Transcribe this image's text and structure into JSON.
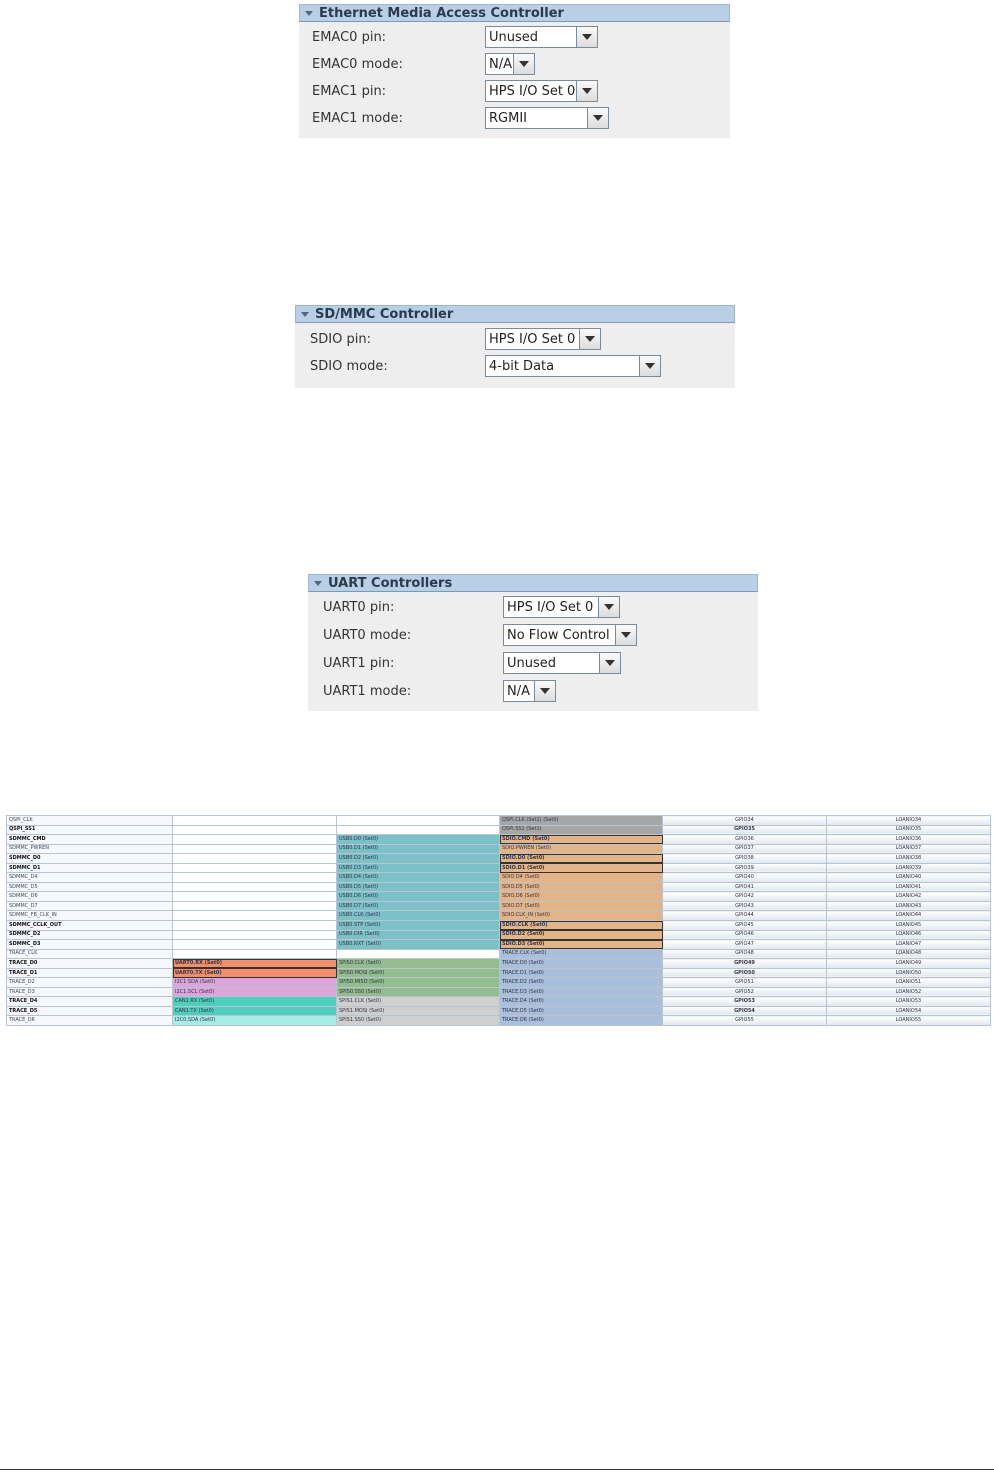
{
  "emac_panel": {
    "title": "Ethernet Media Access Controller",
    "rows": [
      {
        "label": "EMAC0 pin:",
        "value": "Unused"
      },
      {
        "label": "EMAC0 mode:",
        "value": "N/A"
      },
      {
        "label": "EMAC1 pin:",
        "value": "HPS I/O Set 0"
      },
      {
        "label": "EMAC1 mode:",
        "value": "RGMII"
      }
    ]
  },
  "sdmmc_panel": {
    "title": "SD/MMC Controller",
    "rows": [
      {
        "label": "SDIO pin:",
        "value": "HPS I/O Set 0"
      },
      {
        "label": "SDIO mode:",
        "value": "4-bit Data"
      }
    ]
  },
  "uart_panel": {
    "title": "UART Controllers",
    "rows": [
      {
        "label": "UART0 pin:",
        "value": "HPS I/O Set 0"
      },
      {
        "label": "UART0 mode:",
        "value": "No Flow Control"
      },
      {
        "label": "UART1 pin:",
        "value": "Unused"
      },
      {
        "label": "UART1 mode:",
        "value": "N/A"
      }
    ]
  },
  "pin_table": {
    "colors": {
      "usb": "#7cc0c8",
      "sdio": "#e4b489",
      "trace": "#a9bfdc",
      "qspi": "#a6a6a6",
      "uart": "#f08e6e",
      "spi_master": "#93bd8f",
      "i2c1": "#dca6dc",
      "can": "#4fcdbd",
      "spi_slave": "#cfcfcf",
      "i2c0": "#a8ece8"
    },
    "rows": [
      {
        "name": "QSPI_CLK",
        "bold": false,
        "c1": "",
        "c1c": "",
        "c2": "",
        "c2c": "",
        "c3": "QSPI.CLK (Set1) (Set0)",
        "c3c": "qspi",
        "c3b": false,
        "gpio": "GPIO34",
        "loan": "LOANIO34"
      },
      {
        "name": "QSPI_SS1",
        "bold": true,
        "c1": "",
        "c1c": "",
        "c2": "",
        "c2c": "",
        "c3": "QSPI.SS1 (Set1)",
        "c3c": "qspi",
        "c3b": false,
        "gpio": "GPIO35",
        "loan": "LOANIO35"
      },
      {
        "name": "SDMMC_CMD",
        "bold": true,
        "c1": "",
        "c1c": "",
        "c2": "USB0.D0 (Set0)",
        "c2c": "usb",
        "c3": "SDIO.CMD (Set0)",
        "c3c": "sdio",
        "c3b": true,
        "gpio": "GPIO36",
        "loan": "LOANIO36"
      },
      {
        "name": "SDMMC_PWREN",
        "bold": false,
        "c1": "",
        "c1c": "",
        "c2": "USB0.D1 (Set0)",
        "c2c": "usb",
        "c3": "SDIO.PWREN (Set0)",
        "c3c": "sdio",
        "c3b": false,
        "gpio": "GPIO37",
        "loan": "LOANIO37"
      },
      {
        "name": "SDMMC_D0",
        "bold": true,
        "c1": "",
        "c1c": "",
        "c2": "USB0.D2 (Set0)",
        "c2c": "usb",
        "c3": "SDIO.D0 (Set0)",
        "c3c": "sdio",
        "c3b": true,
        "gpio": "GPIO38",
        "loan": "LOANIO38"
      },
      {
        "name": "SDMMC_D1",
        "bold": true,
        "c1": "",
        "c1c": "",
        "c2": "USB0.D3 (Set0)",
        "c2c": "usb",
        "c3": "SDIO.D1 (Set0)",
        "c3c": "sdio",
        "c3b": true,
        "gpio": "GPIO39",
        "loan": "LOANIO39"
      },
      {
        "name": "SDMMC_D4",
        "bold": false,
        "c1": "",
        "c1c": "",
        "c2": "USB0.D4 (Set0)",
        "c2c": "usb",
        "c3": "SDIO.D4 (Set0)",
        "c3c": "sdio",
        "c3b": false,
        "gpio": "GPIO40",
        "loan": "LOANIO40"
      },
      {
        "name": "SDMMC_D5",
        "bold": false,
        "c1": "",
        "c1c": "",
        "c2": "USB0.D5 (Set0)",
        "c2c": "usb",
        "c3": "SDIO.D5 (Set0)",
        "c3c": "sdio",
        "c3b": false,
        "gpio": "GPIO41",
        "loan": "LOANIO41"
      },
      {
        "name": "SDMMC_D6",
        "bold": false,
        "c1": "",
        "c1c": "",
        "c2": "USB0.D6 (Set0)",
        "c2c": "usb",
        "c3": "SDIO.D6 (Set0)",
        "c3c": "sdio",
        "c3b": false,
        "gpio": "GPIO42",
        "loan": "LOANIO42"
      },
      {
        "name": "SDMMC_D7",
        "bold": false,
        "c1": "",
        "c1c": "",
        "c2": "USB0.D7 (Set0)",
        "c2c": "usb",
        "c3": "SDIO.D7 (Set0)",
        "c3c": "sdio",
        "c3b": false,
        "gpio": "GPIO43",
        "loan": "LOANIO43"
      },
      {
        "name": "SDMMC_FB_CLK_IN",
        "bold": false,
        "c1": "",
        "c1c": "",
        "c2": "USB0.CLK (Set0)",
        "c2c": "usb",
        "c3": "SDIO.CLK_IN (Set0)",
        "c3c": "sdio",
        "c3b": false,
        "gpio": "GPIO44",
        "loan": "LOANIO44"
      },
      {
        "name": "SDMMC_CCLK_OUT",
        "bold": true,
        "c1": "",
        "c1c": "",
        "c2": "USB0.STP (Set0)",
        "c2c": "usb",
        "c3": "SDIO.CLK (Set0)",
        "c3c": "sdio",
        "c3b": true,
        "gpio": "GPIO45",
        "loan": "LOANIO45"
      },
      {
        "name": "SDMMC_D2",
        "bold": true,
        "c1": "",
        "c1c": "",
        "c2": "USB0.DIR (Set0)",
        "c2c": "usb",
        "c3": "SDIO.D2 (Set0)",
        "c3c": "sdio",
        "c3b": true,
        "gpio": "GPIO46",
        "loan": "LOANIO46"
      },
      {
        "name": "SDMMC_D3",
        "bold": true,
        "c1": "",
        "c1c": "",
        "c2": "USB0.NXT (Set0)",
        "c2c": "usb",
        "c3": "SDIO.D3 (Set0)",
        "c3c": "sdio",
        "c3b": true,
        "gpio": "GPIO47",
        "loan": "LOANIO47"
      },
      {
        "name": "TRACE_CLK",
        "bold": false,
        "c1": "",
        "c1c": "",
        "c2": "",
        "c2c": "",
        "c3": "TRACE.CLK (Set0)",
        "c3c": "trace",
        "c3b": false,
        "gpio": "GPIO48",
        "loan": "LOANIO48"
      },
      {
        "name": "TRACE_D0",
        "bold": true,
        "c1": "UART0.RX (Set0)",
        "c1c": "uart",
        "c2": "SPIS0.CLK (Set0)",
        "c2c": "spi_master",
        "c3": "TRACE.D0 (Set0)",
        "c3c": "trace",
        "c3b": false,
        "gpio": "GPIO49",
        "loan": "LOANIO49"
      },
      {
        "name": "TRACE_D1",
        "bold": true,
        "c1": "UART0.TX (Set0)",
        "c1c": "uart",
        "c2": "SPIS0.MOSI (Set0)",
        "c2c": "spi_master",
        "c3": "TRACE.D1 (Set0)",
        "c3c": "trace",
        "c3b": false,
        "gpio": "GPIO50",
        "loan": "LOANIO50"
      },
      {
        "name": "TRACE_D2",
        "bold": false,
        "c1": "I2C1.SDA (Set0)",
        "c1c": "i2c1",
        "c2": "SPIS0.MISO (Set0)",
        "c2c": "spi_master",
        "c3": "TRACE.D2 (Set0)",
        "c3c": "trace",
        "c3b": false,
        "gpio": "GPIO51",
        "loan": "LOANIO51"
      },
      {
        "name": "TRACE_D3",
        "bold": false,
        "c1": "I2C1.SCL (Set0)",
        "c1c": "i2c1",
        "c2": "SPIS0.SS0 (Set0)",
        "c2c": "spi_master",
        "c3": "TRACE.D3 (Set0)",
        "c3c": "trace",
        "c3b": false,
        "gpio": "GPIO52",
        "loan": "LOANIO52"
      },
      {
        "name": "TRACE_D4",
        "bold": true,
        "c1": "CAN1.RX (Set0)",
        "c1c": "can",
        "c2": "SPIS1.CLK (Set0)",
        "c2c": "spi_slave",
        "c3": "TRACE.D4 (Set0)",
        "c3c": "trace",
        "c3b": false,
        "gpio": "GPIO53",
        "loan": "LOANIO53"
      },
      {
        "name": "TRACE_D5",
        "bold": true,
        "c1": "CAN1.TX (Set0)",
        "c1c": "can",
        "c2": "SPIS1.MOSI (Set0)",
        "c2c": "spi_slave",
        "c3": "TRACE.D5 (Set0)",
        "c3c": "trace",
        "c3b": false,
        "gpio": "GPIO54",
        "loan": "LOANIO54"
      },
      {
        "name": "TRACE_D6",
        "bold": false,
        "c1": "I2C0.SDA (Set0)",
        "c1c": "i2c0",
        "c2": "SPIS1.SS0 (Set0)",
        "c2c": "spi_slave",
        "c3": "TRACE.D6 (Set0)",
        "c3c": "trace",
        "c3b": false,
        "gpio": "GPIO55",
        "loan": "LOANIO55"
      }
    ]
  }
}
